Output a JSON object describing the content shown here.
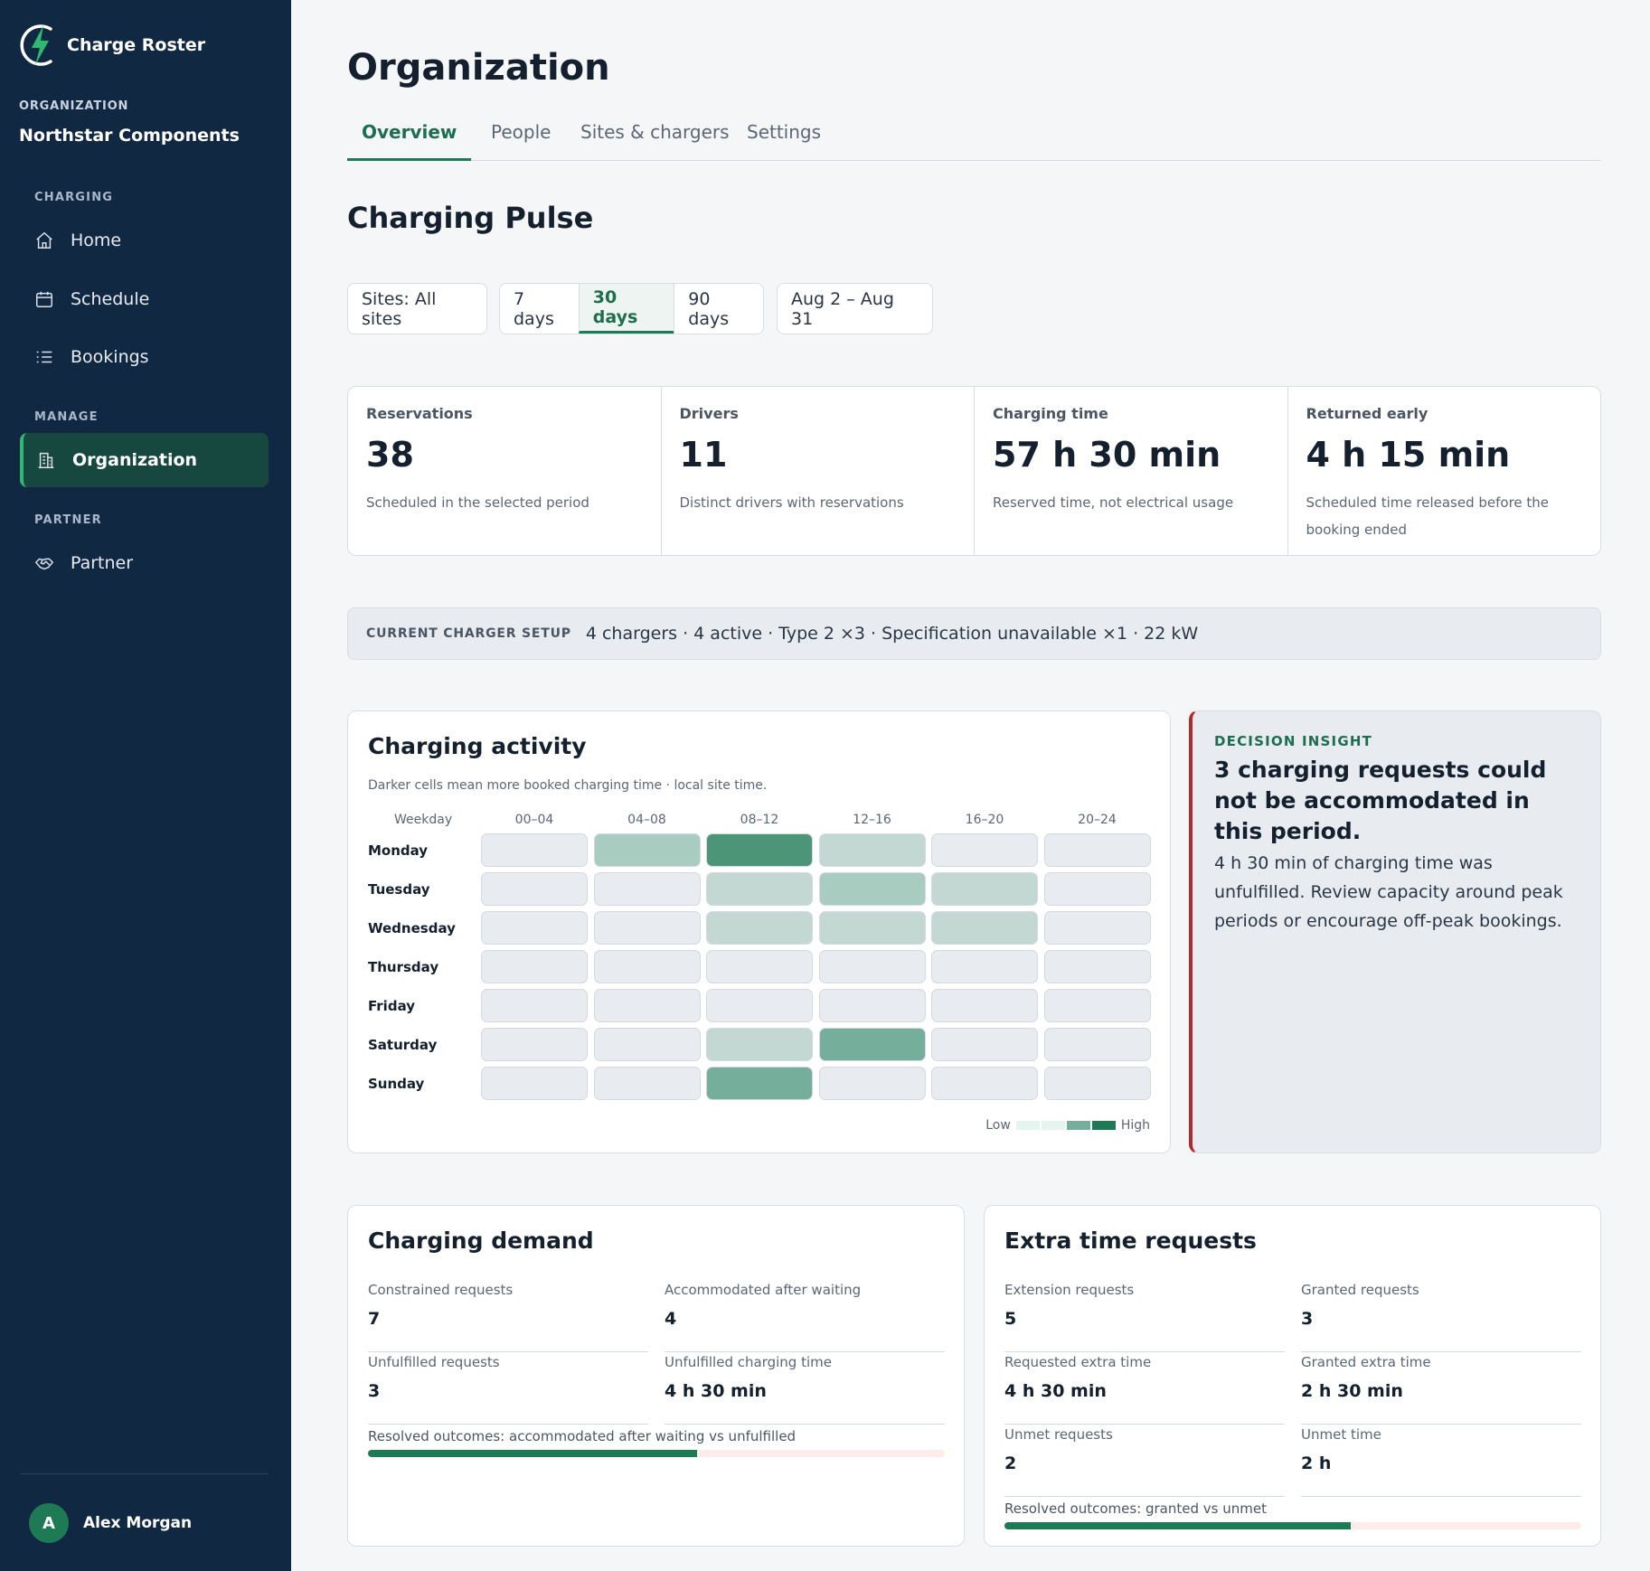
{
  "app": {
    "name": "Charge Roster"
  },
  "sidebar": {
    "org_label": "ORGANIZATION",
    "org_name": "Northstar Components",
    "sections": {
      "charging": "CHARGING",
      "manage": "MANAGE",
      "partner": "PARTNER"
    },
    "items": {
      "home": "Home",
      "schedule": "Schedule",
      "bookings": "Bookings",
      "organization": "Organization",
      "partner": "Partner"
    },
    "user": {
      "initial": "A",
      "name": "Alex Morgan"
    }
  },
  "page": {
    "title": "Organization",
    "tabs": [
      "Overview",
      "People",
      "Sites & chargers",
      "Settings"
    ],
    "active_tab": "Overview",
    "section_title": "Charging Pulse"
  },
  "filters": {
    "sites": "Sites: All sites",
    "periods": [
      "7 days",
      "30 days",
      "90 days"
    ],
    "active_period": "30 days",
    "date_range": "Aug 2 – Aug 31"
  },
  "kpis": [
    {
      "label": "Reservations",
      "value": "38",
      "sub": "Scheduled in the selected period"
    },
    {
      "label": "Drivers",
      "value": "11",
      "sub": "Distinct drivers with reservations"
    },
    {
      "label": "Charging time",
      "value": "57 h 30 min",
      "sub": "Reserved time, not electrical usage"
    },
    {
      "label": "Returned early",
      "value": "4 h 15 min",
      "sub": "Scheduled time released before the booking ended"
    }
  ],
  "setup": {
    "label": "CURRENT CHARGER SETUP",
    "text": "4 chargers · 4 active · Type 2 ×3 · Specification unavailable ×1 · 22 kW"
  },
  "activity": {
    "title": "Charging activity",
    "subtitle": "Darker cells mean more booked charging time · local site time.",
    "corner_label": "Weekday",
    "columns": [
      "00–04",
      "04–08",
      "08–12",
      "12–16",
      "16–20",
      "20–24"
    ],
    "rows": [
      "Monday",
      "Tuesday",
      "Wednesday",
      "Thursday",
      "Friday",
      "Saturday",
      "Sunday"
    ],
    "levels": [
      [
        0,
        2,
        4,
        1,
        0,
        0
      ],
      [
        0,
        0,
        1,
        2,
        1,
        0
      ],
      [
        0,
        0,
        1,
        1,
        1,
        0
      ],
      [
        0,
        0,
        0,
        0,
        0,
        0
      ],
      [
        0,
        0,
        0,
        0,
        0,
        0
      ],
      [
        0,
        0,
        1,
        3,
        0,
        0
      ],
      [
        0,
        0,
        3,
        0,
        0,
        0
      ]
    ],
    "level_colors": [
      "#e8ecf0",
      "#c4d8d3",
      "#a9ccc1",
      "#75af9b",
      "#4d9579"
    ],
    "legend_low": "Low",
    "legend_high": "High",
    "legend_colors": [
      "#e6f4ef",
      "#e6f4ef",
      "#75af9b",
      "#1d7a55"
    ]
  },
  "insight": {
    "label": "DECISION INSIGHT",
    "headline": "3 charging requests could not be accommodated in this period.",
    "body": "4 h 30 min of charging time was unfulfilled. Review capacity around peak periods or encourage off-peak bookings."
  },
  "demand": {
    "title": "Charging demand",
    "stats": [
      {
        "label": "Constrained requests",
        "value": "7"
      },
      {
        "label": "Accommodated after waiting",
        "value": "4"
      },
      {
        "label": "Unfulfilled requests",
        "value": "3"
      },
      {
        "label": "Unfulfilled charging time",
        "value": "4 h 30 min"
      }
    ],
    "bar_label": "Resolved outcomes: accommodated after waiting vs unfulfilled",
    "bar_fraction": 0.571
  },
  "extra": {
    "title": "Extra time requests",
    "stats": [
      {
        "label": "Extension requests",
        "value": "5"
      },
      {
        "label": "Granted requests",
        "value": "3"
      },
      {
        "label": "Requested extra time",
        "value": "4 h 30 min"
      },
      {
        "label": "Granted extra time",
        "value": "2 h 30 min"
      },
      {
        "label": "Unmet requests",
        "value": "2"
      },
      {
        "label": "Unmet time",
        "value": "2 h"
      }
    ],
    "bar_label": "Resolved outcomes: granted vs unmet",
    "bar_fraction": 0.6
  }
}
